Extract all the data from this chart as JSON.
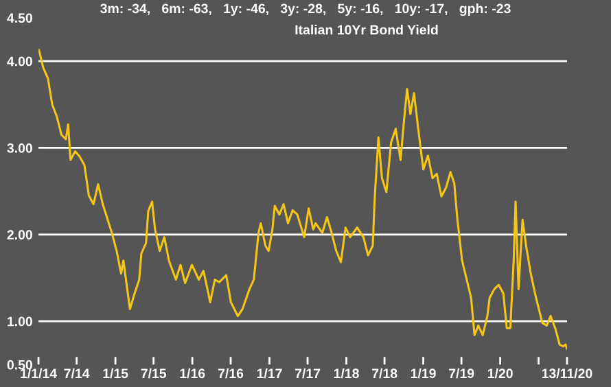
{
  "chart_data": {
    "type": "line",
    "title": "3m: -34,   6m: -63,   1y: -46,   3y: -28,   5y: -16,   10y: -17,   gph: -23",
    "subtitle": "Italian 10Yr Bond Yield",
    "x": [
      "2014-01-03",
      "2014-01-24",
      "2014-02-15",
      "2014-03-07",
      "2014-03-29",
      "2014-04-20",
      "2014-05-11",
      "2014-05-22",
      "2014-06-02",
      "2014-06-24",
      "2014-07-15",
      "2014-08-07",
      "2014-08-28",
      "2014-09-19",
      "2014-10-11",
      "2014-11-02",
      "2014-11-24",
      "2014-12-15",
      "2015-01-07",
      "2015-01-28",
      "2015-02-08",
      "2015-03-01",
      "2015-03-11",
      "2015-04-02",
      "2015-04-24",
      "2015-05-04",
      "2015-05-26",
      "2015-06-06",
      "2015-06-24",
      "2015-07-08",
      "2015-07-30",
      "2015-08-21",
      "2015-09-12",
      "2015-10-15",
      "2015-11-06",
      "2015-11-28",
      "2015-12-30",
      "2016-02-01",
      "2016-02-23",
      "2016-03-26",
      "2016-04-17",
      "2016-05-08",
      "2016-06-10",
      "2016-07-02",
      "2016-08-04",
      "2016-08-26",
      "2016-09-28",
      "2016-10-19",
      "2016-11-10",
      "2016-11-21",
      "2016-12-13",
      "2016-12-28",
      "2017-01-15",
      "2017-01-26",
      "2017-02-17",
      "2017-03-09",
      "2017-03-30",
      "2017-04-21",
      "2017-05-13",
      "2017-06-15",
      "2017-07-06",
      "2017-07-28",
      "2017-08-08",
      "2017-09-09",
      "2017-10-01",
      "2017-10-23",
      "2017-11-14",
      "2017-12-06",
      "2017-12-28",
      "2018-01-19",
      "2018-02-21",
      "2018-03-23",
      "2018-04-14",
      "2018-05-06",
      "2018-05-16",
      "2018-06-02",
      "2018-06-19",
      "2018-07-10",
      "2018-08-01",
      "2018-08-23",
      "2018-09-15",
      "2018-10-01",
      "2018-10-16",
      "2018-11-01",
      "2018-11-18",
      "2018-12-10",
      "2019-01-01",
      "2019-01-23",
      "2019-02-14",
      "2019-03-06",
      "2019-03-28",
      "2019-04-19",
      "2019-05-10",
      "2019-05-28",
      "2019-06-12",
      "2019-07-04",
      "2019-07-26",
      "2019-08-16",
      "2019-09-01",
      "2019-09-19",
      "2019-10-10",
      "2019-11-01",
      "2019-11-12",
      "2019-12-04",
      "2019-12-25",
      "2020-01-16",
      "2020-02-01",
      "2020-02-18",
      "2020-03-05",
      "2020-03-14",
      "2020-03-28",
      "2020-04-16",
      "2020-05-03",
      "2020-05-25",
      "2020-06-16",
      "2020-07-19",
      "2020-08-09",
      "2020-08-27",
      "2020-09-18",
      "2020-10-09",
      "2020-10-25",
      "2020-11-06",
      "2020-11-13"
    ],
    "series": [
      {
        "color": "#f5c518",
        "values": [
          4.13,
          3.92,
          3.8,
          3.5,
          3.36,
          3.15,
          3.1,
          3.27,
          2.86,
          2.96,
          2.9,
          2.8,
          2.45,
          2.35,
          2.58,
          2.35,
          2.18,
          2.02,
          1.81,
          1.55,
          1.7,
          1.32,
          1.14,
          1.32,
          1.48,
          1.78,
          1.9,
          2.27,
          2.38,
          2.06,
          1.81,
          1.97,
          1.7,
          1.48,
          1.65,
          1.44,
          1.65,
          1.48,
          1.58,
          1.22,
          1.48,
          1.45,
          1.53,
          1.22,
          1.06,
          1.14,
          1.37,
          1.48,
          2.02,
          2.13,
          1.87,
          1.81,
          2.06,
          2.33,
          2.23,
          2.35,
          2.13,
          2.28,
          2.23,
          1.97,
          2.3,
          2.06,
          2.13,
          2.02,
          2.2,
          2.02,
          1.81,
          1.68,
          2.08,
          1.97,
          2.08,
          1.97,
          1.76,
          1.87,
          2.44,
          3.12,
          2.65,
          2.49,
          3.06,
          3.22,
          2.86,
          3.3,
          3.68,
          3.39,
          3.63,
          3.18,
          2.75,
          2.91,
          2.65,
          2.7,
          2.44,
          2.54,
          2.72,
          2.59,
          2.17,
          1.7,
          1.48,
          1.27,
          0.84,
          0.95,
          0.84,
          1.06,
          1.27,
          1.37,
          1.42,
          1.32,
          0.92,
          0.92,
          1.7,
          2.38,
          1.37,
          2.17,
          1.87,
          1.55,
          1.3,
          0.98,
          0.95,
          1.06,
          0.92,
          0.73,
          0.71,
          0.73,
          0.68
        ]
      }
    ],
    "xlim": [
      "2014-01-01",
      "2020-11-13"
    ],
    "xticks": [
      {
        "value": "2014-01-01",
        "label": "1/1/14"
      },
      {
        "value": "2014-07-01",
        "label": "7/14"
      },
      {
        "value": "2015-01-01",
        "label": "1/15"
      },
      {
        "value": "2015-07-01",
        "label": "7/15"
      },
      {
        "value": "2016-01-01",
        "label": "1/16"
      },
      {
        "value": "2016-07-01",
        "label": "7/16"
      },
      {
        "value": "2017-01-01",
        "label": "1/17"
      },
      {
        "value": "2017-07-01",
        "label": "7/17"
      },
      {
        "value": "2018-01-01",
        "label": "1/18"
      },
      {
        "value": "2018-07-01",
        "label": "7/18"
      },
      {
        "value": "2019-01-01",
        "label": "1/19"
      },
      {
        "value": "2019-07-01",
        "label": "7/19"
      },
      {
        "value": "2020-01-01",
        "label": "1/20"
      },
      {
        "value": "2020-07-01",
        "label": null
      },
      {
        "value": "2020-11-13",
        "label": "13/11/20"
      }
    ],
    "ylim": [
      0.5,
      4.5
    ],
    "yticks": [
      {
        "value": 0.5,
        "label": "0.50"
      },
      {
        "value": 1,
        "label": "1.00"
      },
      {
        "value": 2,
        "label": "2.00"
      },
      {
        "value": 3,
        "label": "3.00"
      },
      {
        "value": 4,
        "label": "4.00"
      },
      {
        "value": 4.5,
        "label": "4.50"
      }
    ],
    "grid": "y",
    "legend": false,
    "marker": "none",
    "line_style": "solid"
  }
}
